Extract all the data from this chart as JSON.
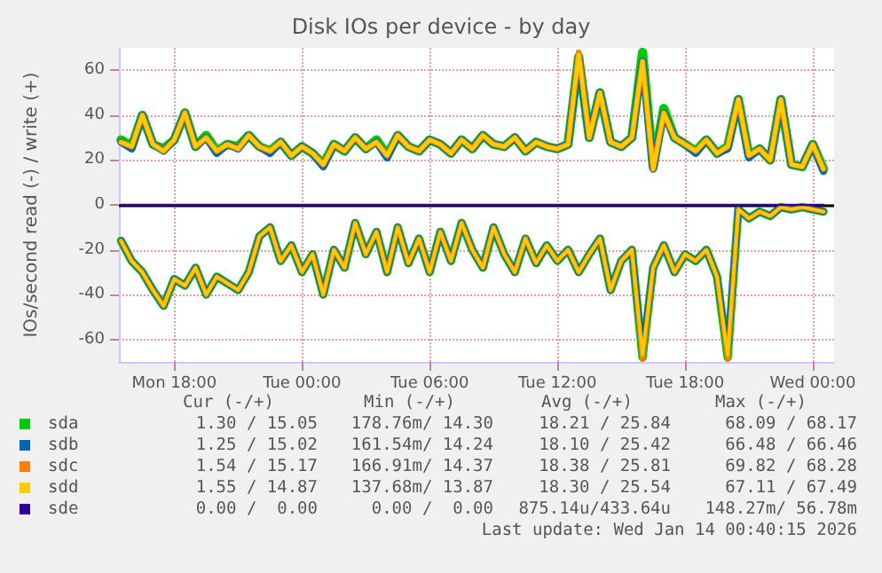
{
  "chart_data": {
    "type": "line",
    "title": "Disk IOs per device - by day",
    "ylabel": "IOs/second read (-) / write (+)",
    "x": [
      "2026-01-12T15:30",
      "2026-01-12T16:00",
      "2026-01-12T16:30",
      "2026-01-12T17:00",
      "2026-01-12T17:30",
      "2026-01-12T18:00",
      "2026-01-12T18:30",
      "2026-01-12T19:00",
      "2026-01-12T19:30",
      "2026-01-12T20:00",
      "2026-01-12T20:30",
      "2026-01-12T21:00",
      "2026-01-12T21:30",
      "2026-01-12T22:00",
      "2026-01-12T22:30",
      "2026-01-12T23:00",
      "2026-01-12T23:30",
      "2026-01-13T00:00",
      "2026-01-13T00:30",
      "2026-01-13T01:00",
      "2026-01-13T01:30",
      "2026-01-13T02:00",
      "2026-01-13T02:30",
      "2026-01-13T03:00",
      "2026-01-13T03:30",
      "2026-01-13T04:00",
      "2026-01-13T04:30",
      "2026-01-13T05:00",
      "2026-01-13T05:30",
      "2026-01-13T06:00",
      "2026-01-13T06:30",
      "2026-01-13T07:00",
      "2026-01-13T07:30",
      "2026-01-13T08:00",
      "2026-01-13T08:30",
      "2026-01-13T09:00",
      "2026-01-13T09:30",
      "2026-01-13T10:00",
      "2026-01-13T10:30",
      "2026-01-13T11:00",
      "2026-01-13T11:30",
      "2026-01-13T12:00",
      "2026-01-13T12:30",
      "2026-01-13T13:00",
      "2026-01-13T13:30",
      "2026-01-13T14:00",
      "2026-01-13T14:30",
      "2026-01-13T15:00",
      "2026-01-13T15:30",
      "2026-01-13T16:00",
      "2026-01-13T16:30",
      "2026-01-13T17:00",
      "2026-01-13T17:30",
      "2026-01-13T18:00",
      "2026-01-13T18:30",
      "2026-01-13T19:00",
      "2026-01-13T19:30",
      "2026-01-13T20:00",
      "2026-01-13T20:30",
      "2026-01-13T21:00",
      "2026-01-13T21:30",
      "2026-01-13T22:00",
      "2026-01-13T22:30",
      "2026-01-13T23:00",
      "2026-01-13T23:30",
      "2026-01-14T00:00",
      "2026-01-14T00:30"
    ],
    "xlim": [
      "2026-01-12T15:24",
      "2026-01-14T01:00"
    ],
    "xticks": [
      {
        "value": "2026-01-12T18:00",
        "label": "Mon 18:00"
      },
      {
        "value": "2026-01-13T00:00",
        "label": "Tue 00:00"
      },
      {
        "value": "2026-01-13T06:00",
        "label": "Tue 06:00"
      },
      {
        "value": "2026-01-13T12:00",
        "label": "Tue 12:00"
      },
      {
        "value": "2026-01-13T18:00",
        "label": "Tue 18:00"
      },
      {
        "value": "2026-01-14T00:00",
        "label": "Wed 00:00"
      }
    ],
    "ylim": [
      -70,
      70
    ],
    "yticks": [
      -60,
      -40,
      -20,
      0,
      20,
      40,
      60
    ],
    "grid": true,
    "legend": "bottom",
    "line_style": "solid",
    "ref_lines": [
      {
        "axis": "y",
        "value": 0,
        "color": "#000000"
      }
    ],
    "series": [
      {
        "name": "sda",
        "color": "#00cc00",
        "values": [
          29,
          26,
          40,
          27,
          25,
          29,
          41,
          26,
          31,
          24,
          27,
          26,
          31,
          26,
          24,
          28,
          22,
          26,
          23,
          18,
          27,
          24,
          30,
          25,
          29,
          22,
          31,
          26,
          24,
          29,
          27,
          23,
          29,
          25,
          31,
          27,
          26,
          30,
          24,
          28,
          26,
          25,
          27,
          66,
          30,
          50,
          28,
          26,
          30,
          68,
          17,
          43,
          30,
          27,
          24,
          29,
          23,
          26,
          47,
          22,
          25,
          20,
          47,
          18,
          17,
          27,
          16
        ]
      },
      {
        "color": "#00cc00",
        "values": [
          -16,
          -25,
          -30,
          -38,
          -45,
          -33,
          -36,
          -28,
          -40,
          -32,
          -35,
          -38,
          -30,
          -14,
          -10,
          -25,
          -18,
          -30,
          -22,
          -40,
          -20,
          -28,
          -8,
          -22,
          -12,
          -30,
          -10,
          -26,
          -15,
          -30,
          -12,
          -25,
          -8,
          -20,
          -28,
          -10,
          -22,
          -30,
          -15,
          -26,
          -18,
          -25,
          -20,
          -30,
          -22,
          -15,
          -38,
          -25,
          -20,
          -68,
          -28,
          -18,
          -30,
          -22,
          -25,
          -20,
          -32,
          -68,
          -2,
          -6,
          -3,
          -5,
          -1,
          -2,
          -1,
          -2,
          -3
        ]
      },
      {
        "name": "sdb",
        "color": "#0066b3",
        "values": [
          28,
          25,
          40,
          27,
          24,
          29,
          41,
          26,
          30,
          23,
          27,
          25,
          31,
          26,
          23,
          28,
          22,
          26,
          23,
          17,
          27,
          24,
          30,
          25,
          28,
          21,
          31,
          26,
          24,
          29,
          27,
          23,
          29,
          25,
          31,
          27,
          26,
          30,
          24,
          28,
          26,
          25,
          27,
          66,
          30,
          50,
          28,
          26,
          30,
          64,
          16,
          41,
          30,
          27,
          23,
          29,
          23,
          25,
          47,
          21,
          25,
          20,
          47,
          18,
          17,
          27,
          15
        ]
      },
      {
        "color": "#0066b3",
        "values": [
          -16,
          -25,
          -30,
          -38,
          -45,
          -33,
          -36,
          -28,
          -40,
          -32,
          -35,
          -38,
          -30,
          -14,
          -10,
          -25,
          -18,
          -30,
          -22,
          -40,
          -20,
          -28,
          -8,
          -22,
          -12,
          -30,
          -10,
          -26,
          -15,
          -30,
          -12,
          -25,
          -8,
          -20,
          -28,
          -10,
          -22,
          -30,
          -15,
          -26,
          -18,
          -25,
          -20,
          -30,
          -22,
          -15,
          -38,
          -25,
          -20,
          -66,
          -28,
          -18,
          -30,
          -22,
          -25,
          -20,
          -32,
          -66,
          -2,
          -6,
          -3,
          -5,
          -1,
          -2,
          -1,
          -2,
          -3
        ]
      },
      {
        "name": "sdc",
        "color": "#ff8000",
        "values": [
          28,
          26,
          40,
          27,
          24,
          29,
          41,
          26,
          30,
          24,
          27,
          25,
          31,
          26,
          24,
          28,
          22,
          26,
          23,
          18,
          27,
          24,
          30,
          25,
          28,
          22,
          31,
          26,
          24,
          29,
          27,
          23,
          29,
          25,
          31,
          27,
          26,
          30,
          24,
          28,
          26,
          25,
          27,
          68,
          30,
          50,
          28,
          26,
          30,
          64,
          16,
          41,
          30,
          27,
          24,
          29,
          23,
          26,
          47,
          22,
          25,
          20,
          47,
          18,
          17,
          27,
          16
        ]
      },
      {
        "color": "#ff8000",
        "values": [
          -16,
          -25,
          -30,
          -38,
          -45,
          -33,
          -36,
          -28,
          -40,
          -32,
          -35,
          -38,
          -30,
          -14,
          -10,
          -25,
          -18,
          -30,
          -22,
          -40,
          -20,
          -28,
          -8,
          -22,
          -12,
          -30,
          -10,
          -26,
          -15,
          -30,
          -12,
          -25,
          -8,
          -20,
          -28,
          -10,
          -22,
          -30,
          -15,
          -26,
          -18,
          -25,
          -20,
          -30,
          -22,
          -15,
          -38,
          -25,
          -20,
          -69,
          -28,
          -18,
          -30,
          -22,
          -25,
          -20,
          -32,
          -69,
          -2,
          -6,
          -3,
          -5,
          -1,
          -2,
          -1,
          -2,
          -3
        ]
      },
      {
        "name": "sdd",
        "color": "#ffcc00",
        "values": [
          28,
          26,
          40,
          27,
          24,
          29,
          41,
          26,
          30,
          24,
          27,
          25,
          31,
          26,
          24,
          28,
          22,
          26,
          23,
          18,
          27,
          24,
          30,
          25,
          28,
          22,
          31,
          26,
          24,
          29,
          27,
          23,
          29,
          25,
          31,
          27,
          26,
          30,
          24,
          28,
          26,
          25,
          27,
          67,
          30,
          50,
          28,
          26,
          30,
          64,
          16,
          41,
          30,
          27,
          24,
          29,
          23,
          26,
          47,
          22,
          25,
          20,
          47,
          18,
          17,
          27,
          16
        ]
      },
      {
        "color": "#ffcc00",
        "values": [
          -16,
          -25,
          -30,
          -38,
          -45,
          -33,
          -36,
          -28,
          -40,
          -32,
          -35,
          -38,
          -30,
          -14,
          -10,
          -25,
          -18,
          -30,
          -22,
          -40,
          -20,
          -28,
          -8,
          -22,
          -12,
          -30,
          -10,
          -26,
          -15,
          -30,
          -12,
          -25,
          -8,
          -20,
          -28,
          -10,
          -22,
          -30,
          -15,
          -26,
          -18,
          -25,
          -20,
          -30,
          -22,
          -15,
          -38,
          -25,
          -20,
          -67,
          -28,
          -18,
          -30,
          -22,
          -25,
          -20,
          -32,
          -67,
          -2,
          -6,
          -3,
          -5,
          -1,
          -2,
          -1,
          -2,
          -3
        ]
      },
      {
        "name": "sde",
        "color": "#330099",
        "values": [
          0,
          0,
          0,
          0,
          0,
          0,
          0,
          0,
          0,
          0,
          0,
          0,
          0,
          0,
          0,
          0,
          0,
          0,
          0,
          0,
          0,
          0,
          0,
          0,
          0,
          0,
          0,
          0,
          0,
          0,
          0,
          0,
          0,
          0,
          0,
          0,
          0,
          0,
          0,
          0,
          0,
          0,
          0,
          0,
          0,
          0,
          0,
          0,
          0,
          0,
          0,
          0,
          0,
          0,
          0,
          0,
          0,
          0,
          0,
          0,
          0,
          0,
          0,
          0,
          0,
          0,
          0
        ]
      }
    ],
    "annotations": [
      "Cur (-/+)",
      "Min (-/+)",
      "Avg (-/+)",
      "Max (-/+)",
      "1.30 / 15.05",
      "178.76m/ 14.30",
      "18.21 / 25.84",
      "68.09 / 68.17",
      "1.25 / 15.02",
      "161.54m/ 14.24",
      "18.10 / 25.42",
      "66.48 / 66.46",
      "1.54 / 15.17",
      "166.91m/ 14.37",
      "18.38 / 25.81",
      "69.82 / 68.28",
      "1.55 / 14.87",
      "137.68m/ 13.87",
      "18.30 / 25.54",
      "67.11 / 67.49",
      "0.00 /  0.00",
      "0.00 /  0.00",
      "875.14u/433.64u",
      "148.27m/ 56.78m",
      "Last update: Wed Jan 14 00:40:15 2026"
    ]
  }
}
